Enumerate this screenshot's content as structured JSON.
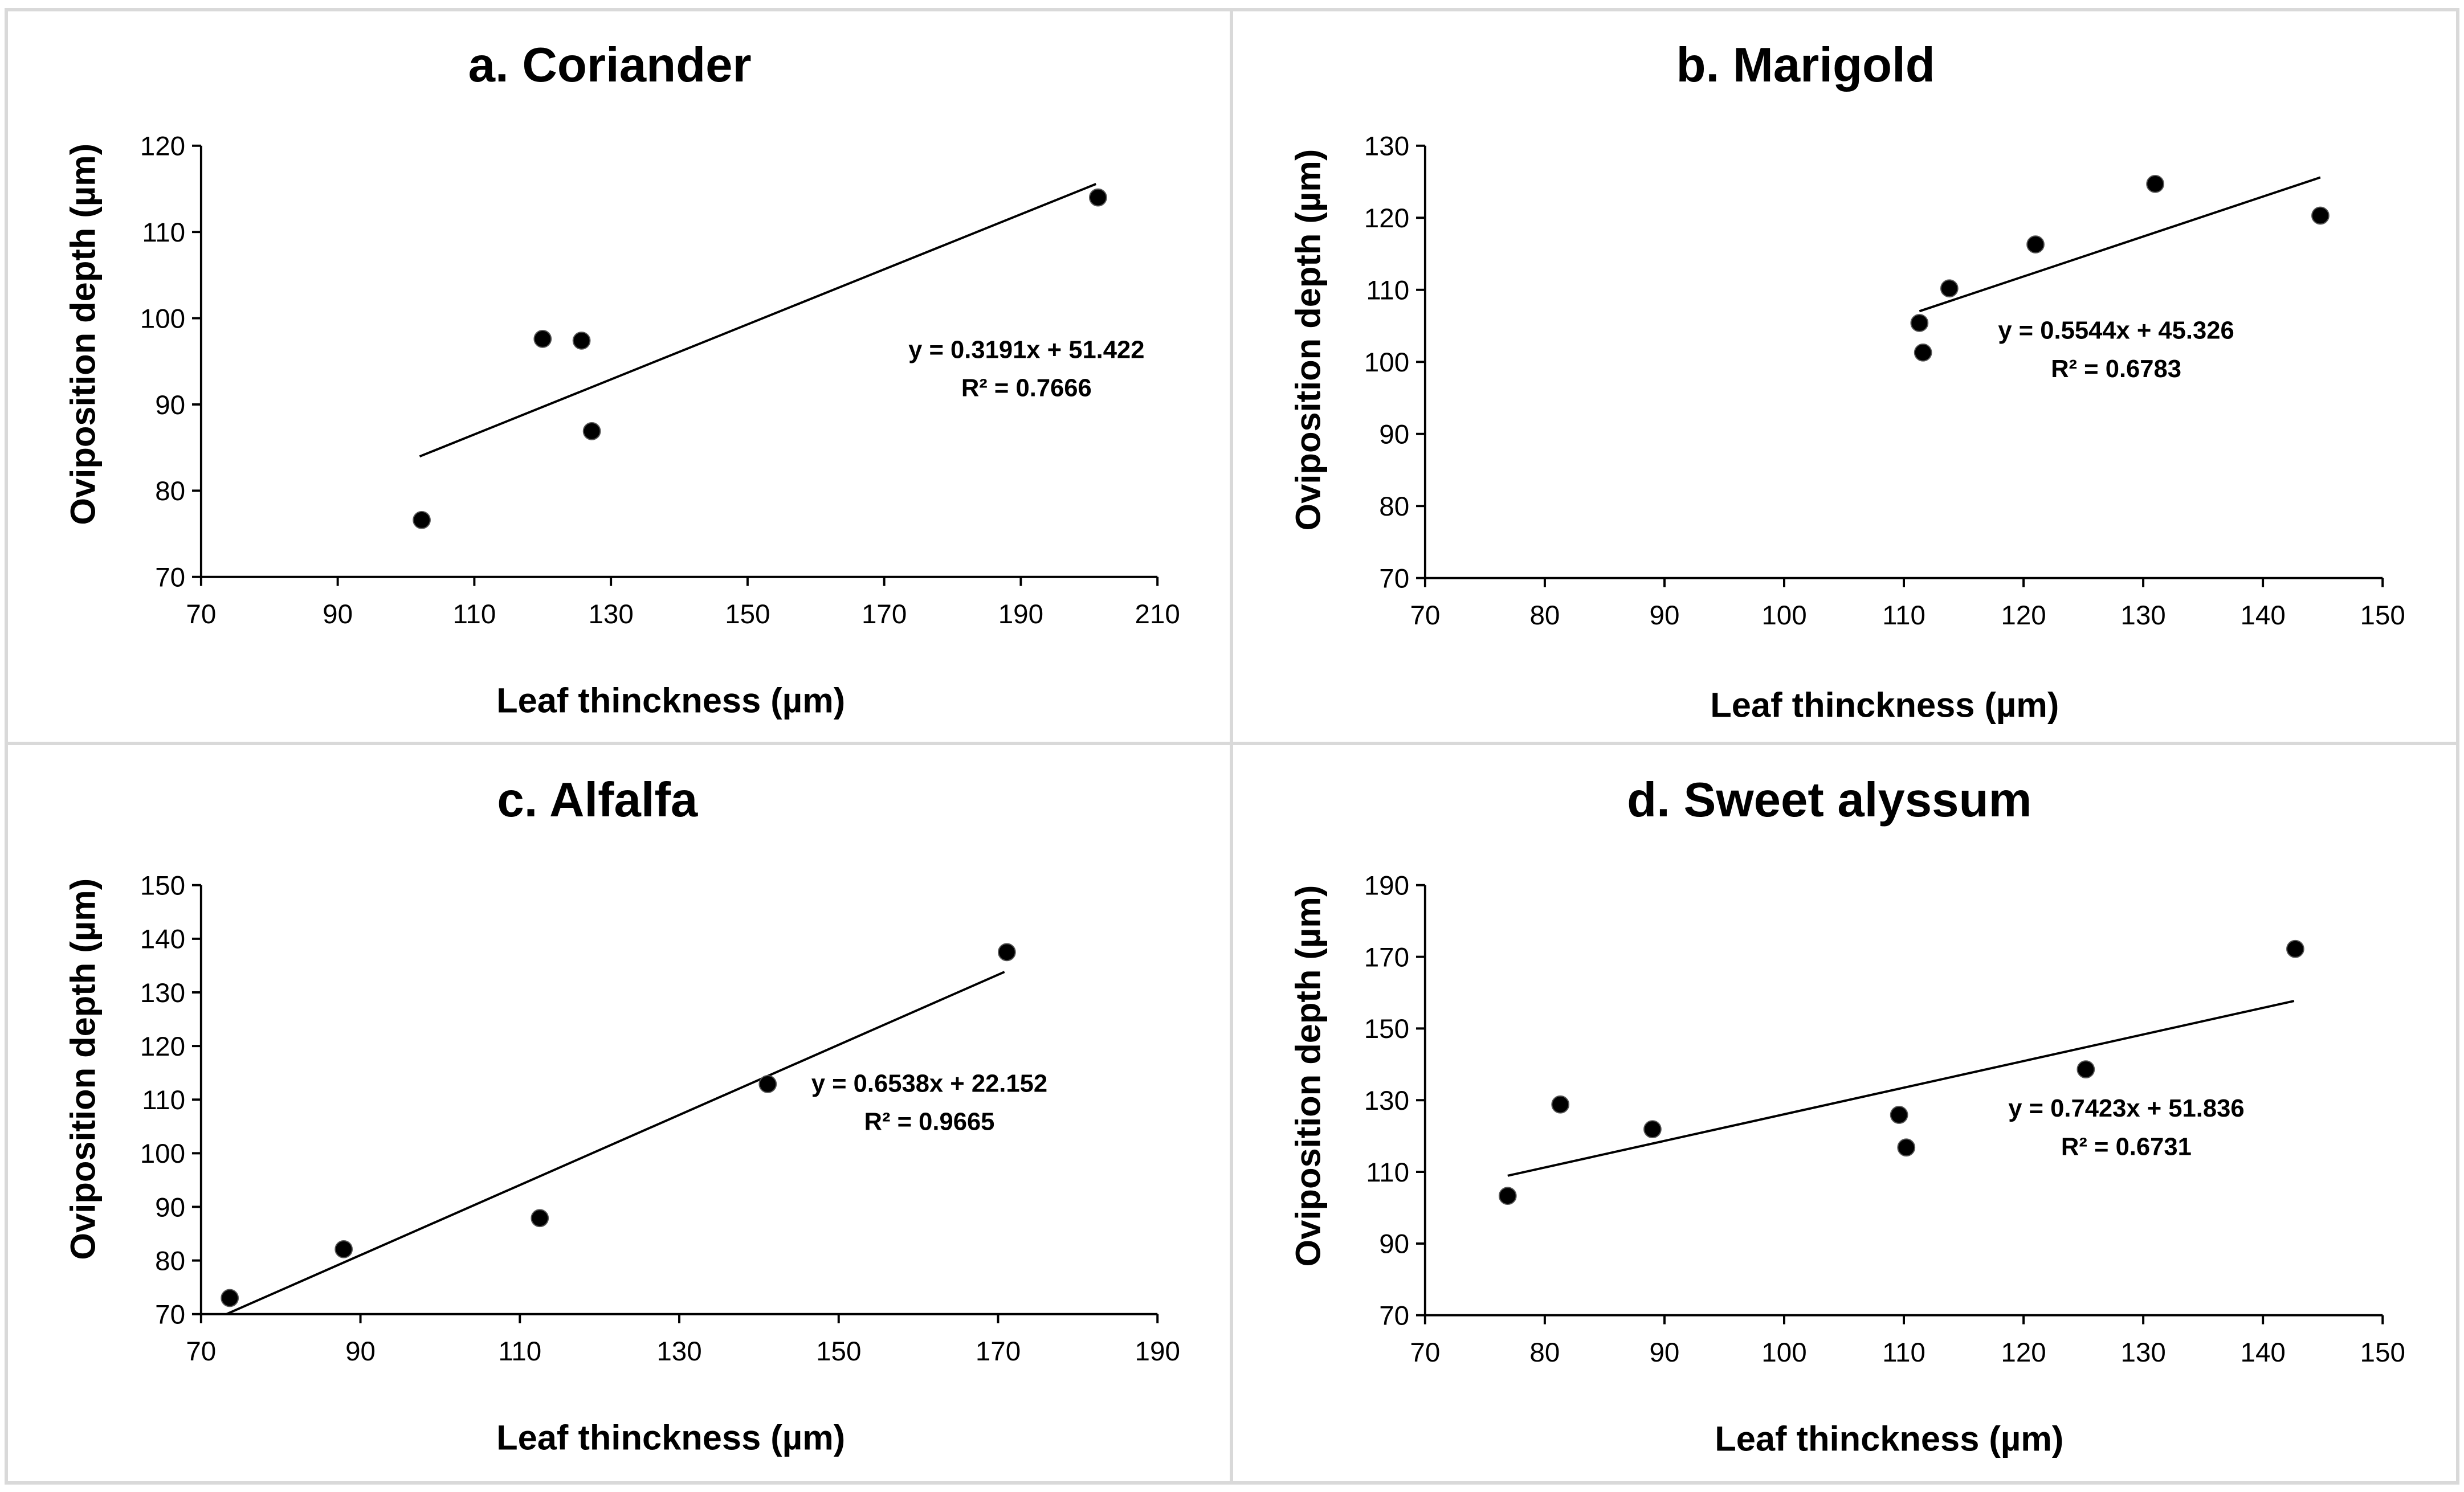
{
  "chart_data": [
    {
      "type": "scatter",
      "title": "a. Coriander",
      "xlabel": "Leaf thinckness (µm)",
      "ylabel": "Oviposition depth  (µm)",
      "xlim": [
        70,
        210
      ],
      "ylim": [
        70,
        120
      ],
      "xticks": [
        "70",
        "90",
        "110",
        "130",
        "150",
        "170",
        "190",
        "210"
      ],
      "yticks": [
        "70",
        "80",
        "90",
        "100",
        "110",
        "120"
      ],
      "x": [
        102.3,
        120.0,
        125.7,
        127.2,
        201.3
      ],
      "y": [
        76.6,
        97.6,
        97.4,
        86.9,
        114.0
      ],
      "trendline": {
        "slope": 0.3191,
        "intercept": 51.422,
        "x_range": [
          102,
          201
        ]
      },
      "equation": "y = 0.3191x + 51.422",
      "r2": "R² = 0.7666"
    },
    {
      "type": "scatter",
      "title": "b. Marigold",
      "xlabel": "Leaf thinckness (µm)",
      "ylabel": "Oviposition depth  (µm)",
      "xlim": [
        70,
        150
      ],
      "ylim": [
        70,
        130
      ],
      "xticks": [
        "70",
        "80",
        "90",
        "100",
        "110",
        "120",
        "130",
        "140",
        "150"
      ],
      "yticks": [
        "70",
        "80",
        "90",
        "100",
        "110",
        "120",
        "130"
      ],
      "x": [
        111.3,
        111.6,
        113.8,
        121.0,
        131.0,
        144.8
      ],
      "y": [
        105.4,
        101.3,
        110.2,
        116.3,
        124.7,
        120.3
      ],
      "trendline": {
        "slope": 0.5544,
        "intercept": 45.326,
        "x_range": [
          111.3,
          144.8
        ]
      },
      "equation": "y = 0.5544x + 45.326",
      "r2": "R² = 0.6783"
    },
    {
      "type": "scatter",
      "title": "c. Alfalfa",
      "xlabel": "Leaf thinckness (µm)",
      "ylabel": "Oviposition depth  (µm)",
      "xlim": [
        70,
        190
      ],
      "ylim": [
        70,
        150
      ],
      "xticks": [
        "70",
        "90",
        "110",
        "130",
        "150",
        "170",
        "190"
      ],
      "yticks": [
        "70",
        "80",
        "90",
        "100",
        "110",
        "120",
        "130",
        "140",
        "150"
      ],
      "x": [
        73.6,
        87.9,
        112.5,
        141.1,
        171.1
      ],
      "y": [
        73.0,
        82.1,
        87.9,
        112.9,
        137.5
      ],
      "trendline": {
        "slope": 0.6538,
        "intercept": 22.152,
        "x_range": [
          73.2,
          170.8
        ]
      },
      "equation": "y = 0.6538x + 22.152",
      "r2": "R² = 0.9665"
    },
    {
      "type": "scatter",
      "title": "d. Sweet alyssum",
      "xlabel": "Leaf thinckness (µm)",
      "ylabel": "Oviposition depth  (µm)",
      "xlim": [
        70,
        150
      ],
      "ylim": [
        70,
        190
      ],
      "xticks": [
        "70",
        "80",
        "90",
        "100",
        "110",
        "120",
        "130",
        "140",
        "150"
      ],
      "yticks": [
        "70",
        "90",
        "110",
        "130",
        "150",
        "170",
        "190"
      ],
      "x": [
        76.9,
        81.3,
        89.0,
        109.6,
        110.2,
        125.2,
        142.7
      ],
      "y": [
        103.3,
        128.8,
        121.9,
        125.9,
        116.8,
        138.6,
        172.2
      ],
      "trendline": {
        "slope": 0.7423,
        "intercept": 51.836,
        "x_range": [
          76.9,
          142.6
        ]
      },
      "equation": "y = 0.7423x + 51.836",
      "r2": "R² = 0.6731"
    }
  ]
}
